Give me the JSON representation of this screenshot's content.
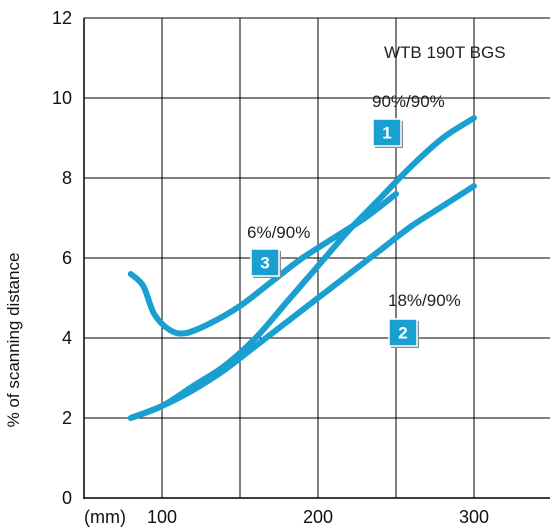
{
  "chart_data": {
    "type": "line",
    "title": "",
    "xlabel": "",
    "ylabel": "% of scanning distance",
    "x_unit_label": "(mm)",
    "xlim": [
      50,
      350
    ],
    "ylim": [
      0,
      12
    ],
    "x_ticks": [
      100,
      200,
      300
    ],
    "y_ticks": [
      0,
      2,
      4,
      6,
      8,
      10,
      12
    ],
    "grid": true,
    "line_color": "#1a9fd1",
    "badge_color": "#1a9fd1",
    "product_label": "WTB 190T BGS",
    "series": [
      {
        "badge": "1",
        "label": "90%/90%",
        "points": [
          [
            80,
            2.0
          ],
          [
            100,
            2.3
          ],
          [
            120,
            2.8
          ],
          [
            140,
            3.3
          ],
          [
            160,
            4.0
          ],
          [
            180,
            4.9
          ],
          [
            200,
            5.8
          ],
          [
            220,
            6.7
          ],
          [
            240,
            7.5
          ],
          [
            260,
            8.3
          ],
          [
            280,
            9.0
          ],
          [
            300,
            9.5
          ]
        ]
      },
      {
        "badge": "2",
        "label": "18%/90%",
        "points": [
          [
            80,
            2.0
          ],
          [
            100,
            2.3
          ],
          [
            120,
            2.7
          ],
          [
            140,
            3.2
          ],
          [
            160,
            3.8
          ],
          [
            180,
            4.4
          ],
          [
            200,
            5.0
          ],
          [
            220,
            5.6
          ],
          [
            240,
            6.2
          ],
          [
            260,
            6.8
          ],
          [
            280,
            7.3
          ],
          [
            300,
            7.8
          ]
        ]
      },
      {
        "badge": "3",
        "label": "6%/90%",
        "points": [
          [
            80,
            5.6
          ],
          [
            88,
            5.3
          ],
          [
            95,
            4.6
          ],
          [
            105,
            4.2
          ],
          [
            115,
            4.12
          ],
          [
            130,
            4.35
          ],
          [
            150,
            4.8
          ],
          [
            170,
            5.4
          ],
          [
            190,
            6.0
          ],
          [
            210,
            6.5
          ],
          [
            230,
            7.0
          ],
          [
            250,
            7.6
          ]
        ]
      }
    ]
  }
}
